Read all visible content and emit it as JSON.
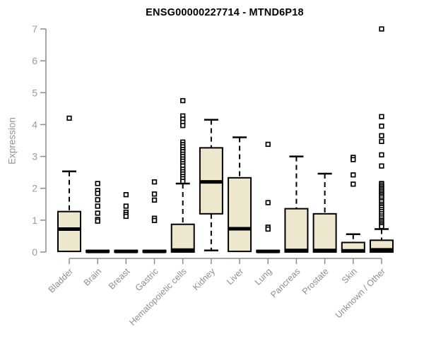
{
  "chart_data": {
    "type": "boxplot",
    "title": "ENSG00000227714 - MTND6P18",
    "ylabel": "Expression",
    "xlabel": "",
    "ylim": [
      0,
      7
    ],
    "yticks": [
      0,
      1,
      2,
      3,
      4,
      5,
      6,
      7
    ],
    "grid": false,
    "legend": "none",
    "categories": [
      "Bladder",
      "Brain",
      "Breast",
      "Gastric",
      "Hematopoietic cells",
      "Kidney",
      "Liver",
      "Lung",
      "Pancreas",
      "Prostate",
      "Skin",
      "Unknown / Other"
    ],
    "series": [
      {
        "category": "Bladder",
        "low": 0.02,
        "q1": 0.02,
        "median": 0.72,
        "q3": 1.27,
        "high": 2.53,
        "outliers": [
          4.2
        ]
      },
      {
        "category": "Brain",
        "low": 0,
        "q1": 0,
        "median": 0.02,
        "q3": 0.05,
        "high": 0.05,
        "outliers": [
          2.15,
          1.93,
          1.84,
          1.64,
          1.44,
          1.22,
          1.02,
          0.97
        ]
      },
      {
        "category": "Breast",
        "low": 0,
        "q1": 0,
        "median": 0.02,
        "q3": 0.05,
        "high": 0.05,
        "outliers": [
          1.8,
          1.44,
          1.25,
          1.18,
          1.12
        ]
      },
      {
        "category": "Gastric",
        "low": 0,
        "q1": 0,
        "median": 0.02,
        "q3": 0.05,
        "high": 0.05,
        "outliers": [
          2.2,
          1.82,
          1.63,
          1.06,
          0.99
        ]
      },
      {
        "category": "Hematopoietic cells",
        "low": 0,
        "q1": 0,
        "median": 0.06,
        "q3": 0.87,
        "high": 2.15,
        "outliers": [
          4.75,
          4.27,
          4.17,
          4.07,
          3.97,
          3.45,
          3.37,
          3.3,
          3.22,
          3.15,
          3.07,
          3.0,
          2.92,
          2.85,
          2.77,
          2.7,
          2.6,
          2.52,
          2.45,
          2.37,
          2.3,
          2.22
        ]
      },
      {
        "category": "Kidney",
        "low": 0.05,
        "q1": 1.2,
        "median": 2.2,
        "q3": 3.27,
        "high": 4.15,
        "outliers": []
      },
      {
        "category": "Liver",
        "low": 0.02,
        "q1": 0.02,
        "median": 0.73,
        "q3": 2.33,
        "high": 3.6,
        "outliers": []
      },
      {
        "category": "Lung",
        "low": 0,
        "q1": 0,
        "median": 0.02,
        "q3": 0.05,
        "high": 0.05,
        "outliers": [
          3.38,
          1.55,
          0.78,
          0.72
        ]
      },
      {
        "category": "Pancreas",
        "low": 0,
        "q1": 0,
        "median": 0.05,
        "q3": 1.36,
        "high": 3.0,
        "outliers": []
      },
      {
        "category": "Prostate",
        "low": 0,
        "q1": 0,
        "median": 0.05,
        "q3": 1.2,
        "high": 2.46,
        "outliers": []
      },
      {
        "category": "Skin",
        "low": 0,
        "q1": 0,
        "median": 0.04,
        "q3": 0.3,
        "high": 0.56,
        "outliers": [
          2.97,
          2.9,
          2.42,
          2.13
        ]
      },
      {
        "category": "Unknown / Other",
        "low": 0,
        "q1": 0,
        "median": 0.07,
        "q3": 0.37,
        "high": 0.72,
        "outliers": [
          7.0,
          4.25,
          3.95,
          3.65,
          3.47,
          3.05,
          2.7,
          2.15,
          2.1,
          2.05,
          2.0,
          1.95,
          1.9,
          1.85,
          1.8,
          1.75,
          1.7,
          1.63,
          1.58,
          1.5,
          1.45,
          1.4,
          1.33,
          1.27,
          1.2,
          1.13,
          1.07,
          1.0,
          0.95,
          0.9,
          0.85,
          0.8
        ]
      }
    ],
    "colors": {
      "box_fill": "#EDE8CD",
      "box_border": "#000000",
      "median": "#000000",
      "whisker": "#000000",
      "outlier_fill": "#ffffff",
      "axis": "#8c8c8c",
      "tick_label": "#9a9a9a",
      "title": "#000000",
      "background": "#ffffff"
    }
  }
}
